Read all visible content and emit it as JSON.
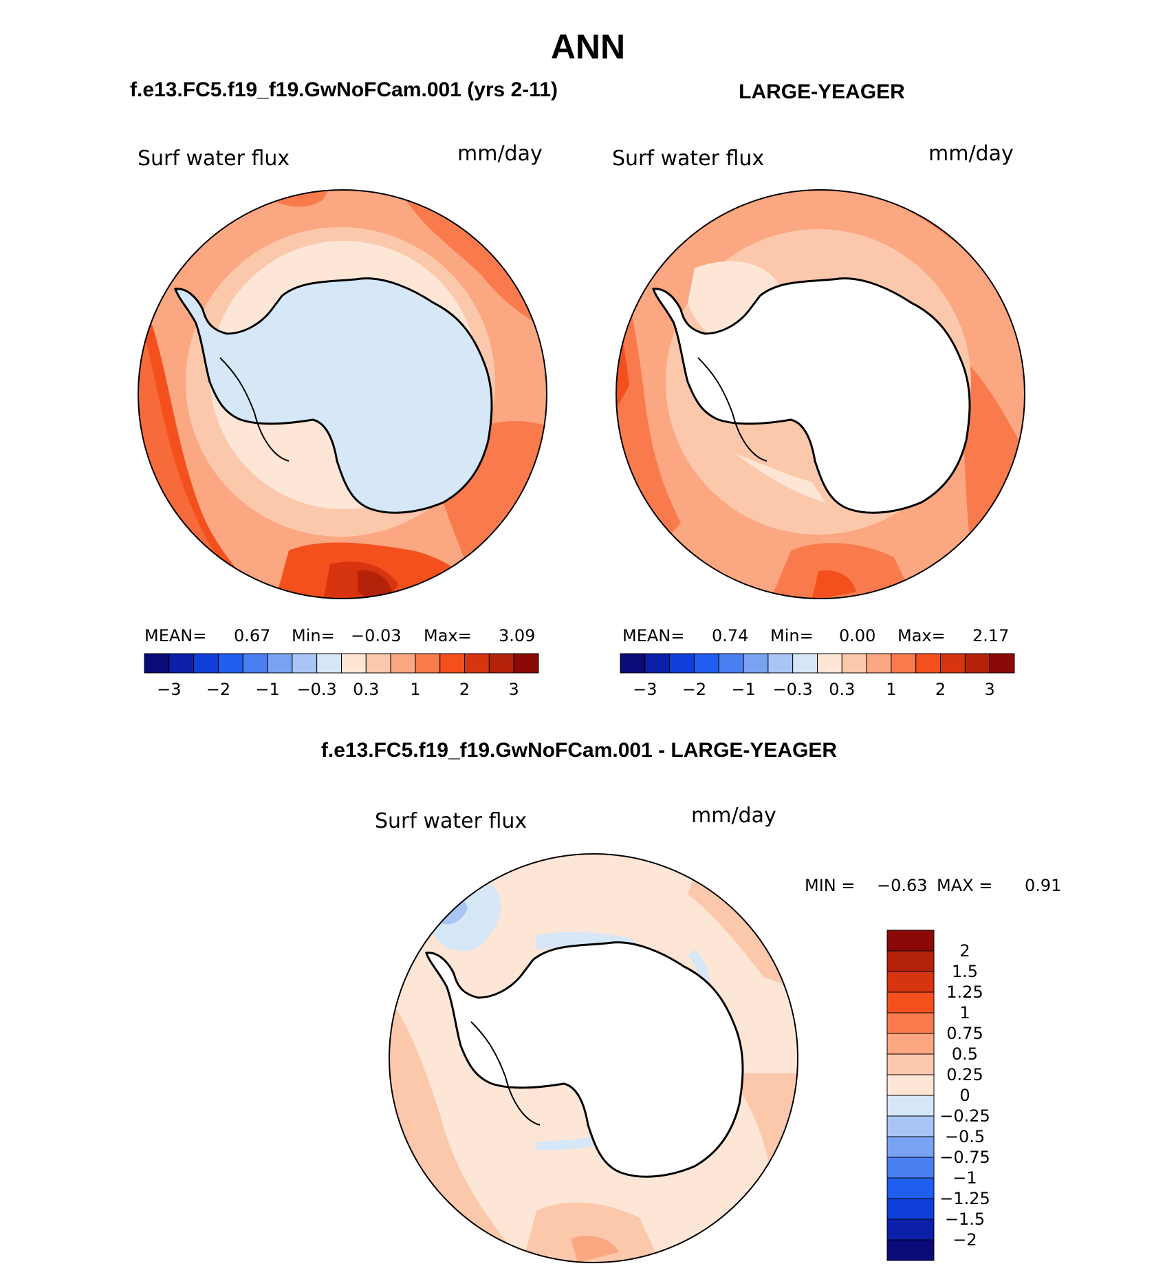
{
  "title": "ANN",
  "panels": {
    "left": {
      "header": "f.e13.FC5.f19_f19.GwNoFCam.001 (yrs 2-11)",
      "variable": "Surf water flux",
      "units": "mm/day",
      "stats": {
        "mean_label": "MEAN=",
        "mean": "0.67",
        "min_label": "Min=",
        "min": "−0.03",
        "max_label": "Max=",
        "max": "3.09"
      }
    },
    "right": {
      "header": "LARGE-YEAGER",
      "variable": "Surf water flux",
      "units": "mm/day",
      "stats": {
        "mean_label": "MEAN=",
        "mean": "0.74",
        "min_label": "Min=",
        "min": "0.00",
        "max_label": "Max=",
        "max": "2.17"
      }
    },
    "diff": {
      "header": "f.e13.FC5.f19_f19.GwNoFCam.001 - LARGE-YEAGER",
      "variable": "Surf water flux",
      "units": "mm/day",
      "minmax": {
        "min_label": "MIN =",
        "min": "−0.63",
        "max_label": "MAX =",
        "max": "0.91"
      }
    }
  },
  "horizontal_colorbar": {
    "colors": [
      "#0a0a78",
      "#0b1fa8",
      "#0f3fd8",
      "#1f5eef",
      "#4a7ff2",
      "#7aa2f2",
      "#a9c5f5",
      "#d6e7f8",
      "#fde6d6",
      "#fcc8ac",
      "#fba782",
      "#f97b4d",
      "#f4501e",
      "#d63510",
      "#b5220a",
      "#8b0a07"
    ],
    "tick_labels": [
      "−3",
      "−2",
      "−1",
      "−0.3",
      "0.3",
      "1",
      "2",
      "3"
    ]
  },
  "vertical_colorbar": {
    "colors": [
      "#8b0a07",
      "#b5220a",
      "#d63510",
      "#f4501e",
      "#f97b4d",
      "#fba782",
      "#fcc8ac",
      "#fde6d6",
      "#d6e7f8",
      "#a9c5f5",
      "#7aa2f2",
      "#4a7ff2",
      "#1f5eef",
      "#0f3fd8",
      "#0b1fa8",
      "#0a0a78"
    ],
    "tick_labels": [
      "2",
      "1.5",
      "1.25",
      "1",
      "0.75",
      "0.5",
      "0.25",
      "0",
      "−0.25",
      "−0.5",
      "−0.75",
      "−1",
      "−1.25",
      "−1.5",
      "−2"
    ]
  },
  "palette": {
    "land_ice": "#d6e7f8",
    "coast": "#000000",
    "ocean_left_base": "#fba782",
    "ocean_right_base": "#fba782",
    "ocean_diff_base": "#fde6d6"
  }
}
